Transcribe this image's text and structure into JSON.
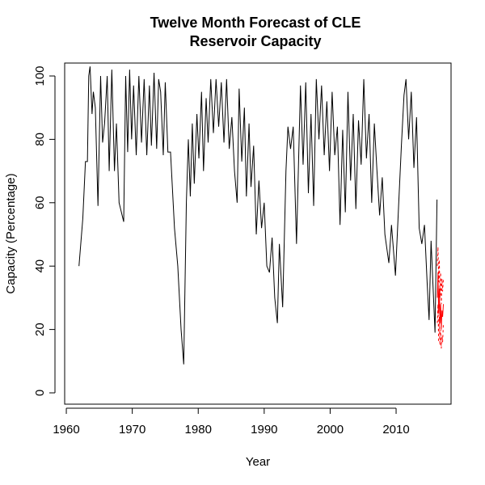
{
  "chart_data": {
    "type": "line",
    "title": [
      "Twelve Month Forecast of CLE",
      "Reservoir Capacity"
    ],
    "x_label": "Year",
    "y_label": "Capacity (Percentage)",
    "xlim": [
      1959.75,
      2018.33
    ],
    "ylim": [
      -3.57,
      104.08
    ],
    "xticks": [
      1960,
      1970,
      1980,
      1990,
      2000,
      2010
    ],
    "yticks": [
      0,
      20,
      40,
      60,
      80,
      100
    ],
    "series": [
      {
        "color": "#000000",
        "dashed": false,
        "x": [
          1961.92,
          1962.5,
          1962.9,
          1963.2,
          1963.4,
          1963.6,
          1963.9,
          1964.1,
          1964.4,
          1964.8,
          1965.2,
          1965.5,
          1965.8,
          1966.2,
          1966.5,
          1966.9,
          1967.3,
          1967.6,
          1968.0,
          1968.7,
          1969.0,
          1969.3,
          1969.6,
          1969.9,
          1970.2,
          1970.6,
          1971.0,
          1971.4,
          1971.8,
          1972.2,
          1972.6,
          1972.9,
          1973.3,
          1973.7,
          1974.0,
          1974.3,
          1974.7,
          1975.0,
          1975.4,
          1975.8,
          1976.4,
          1976.9,
          1977.4,
          1977.8,
          1978.2,
          1978.5,
          1978.8,
          1979.1,
          1979.4,
          1979.8,
          1980.1,
          1980.5,
          1980.8,
          1981.2,
          1981.5,
          1981.9,
          1982.3,
          1982.7,
          1983.1,
          1983.5,
          1983.9,
          1984.3,
          1984.7,
          1985.1,
          1985.5,
          1985.9,
          1986.2,
          1986.6,
          1987.0,
          1987.3,
          1987.7,
          1988.0,
          1988.4,
          1988.8,
          1989.2,
          1989.6,
          1990.0,
          1990.4,
          1990.8,
          1991.2,
          1991.6,
          1992.0,
          1992.3,
          1992.8,
          1993.3,
          1993.6,
          1994.0,
          1994.4,
          1994.9,
          1995.5,
          1995.9,
          1996.3,
          1996.7,
          1997.1,
          1997.5,
          1997.9,
          1998.3,
          1998.7,
          1999.1,
          1999.5,
          1999.9,
          2000.3,
          2000.7,
          2001.1,
          2001.5,
          2001.9,
          2002.3,
          2002.7,
          2003.1,
          2003.5,
          2003.9,
          2004.3,
          2004.7,
          2005.1,
          2005.5,
          2005.9,
          2006.3,
          2006.7,
          2007.1,
          2007.5,
          2007.9,
          2008.3,
          2008.9,
          2009.3,
          2009.9,
          2010.4,
          2010.8,
          2011.2,
          2011.5,
          2011.9,
          2012.3,
          2012.7,
          2013.1,
          2013.5,
          2013.9,
          2014.3,
          2014.7,
          2015.0,
          2015.3,
          2015.9,
          2016.2
        ],
        "values": [
          40,
          55,
          73,
          73,
          100,
          103,
          88,
          95,
          90,
          59,
          100,
          79,
          85,
          100,
          70,
          102,
          70,
          85,
          60,
          54,
          100,
          76,
          102,
          80,
          97,
          75,
          100,
          79,
          99,
          75,
          97,
          78,
          101,
          77,
          99,
          95,
          75,
          98,
          76,
          76,
          52,
          40,
          20,
          9,
          60,
          80,
          62,
          85,
          66,
          88,
          74,
          95,
          70,
          93,
          79,
          99,
          82,
          99,
          84,
          98,
          79,
          99,
          77,
          87,
          70,
          60,
          96,
          73,
          90,
          62,
          85,
          65,
          78,
          50,
          67,
          52,
          60,
          40,
          38,
          49,
          30,
          22,
          47,
          27,
          70,
          84,
          77,
          84,
          47,
          97,
          72,
          98,
          63,
          88,
          59,
          99,
          80,
          97,
          75,
          92,
          70,
          95,
          75,
          84,
          53,
          83,
          57,
          95,
          67,
          88,
          58,
          86,
          72,
          99,
          74,
          88,
          60,
          85,
          70,
          56,
          68,
          50,
          41,
          53,
          37,
          60,
          78,
          94,
          99,
          80,
          95,
          71,
          87,
          52,
          47,
          53,
          35,
          23,
          48,
          19,
          61
        ]
      },
      {
        "color": "#ff0000",
        "dashed": false,
        "x": [
          2016.25,
          2016.35,
          2016.45,
          2016.55,
          2016.65,
          2016.75,
          2016.85,
          2016.95,
          2017.05,
          2017.17
        ],
        "values": [
          30,
          38,
          25,
          33,
          22,
          28,
          20,
          26,
          24,
          28
        ]
      },
      {
        "color": "#ff0000",
        "dashed": true,
        "x": [
          2016.25,
          2016.35,
          2016.45,
          2016.55,
          2016.65,
          2016.75,
          2016.85,
          2016.95,
          2017.05,
          2017.17
        ],
        "values": [
          40,
          46,
          35,
          42,
          30,
          38,
          28,
          36,
          32,
          36
        ]
      },
      {
        "color": "#ff0000",
        "dashed": true,
        "x": [
          2016.25,
          2016.35,
          2016.45,
          2016.55,
          2016.65,
          2016.75,
          2016.85,
          2016.95,
          2017.05,
          2017.17
        ],
        "values": [
          22,
          28,
          16,
          24,
          15,
          20,
          14,
          18,
          16,
          22
        ]
      }
    ]
  }
}
